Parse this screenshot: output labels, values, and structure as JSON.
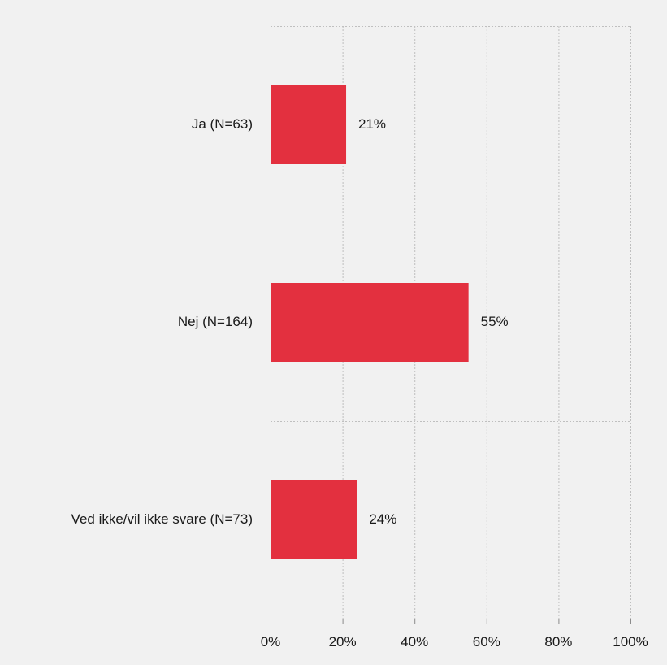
{
  "chart_data": {
    "type": "bar",
    "orientation": "horizontal",
    "categories": [
      "Ja (N=63)",
      "Nej (N=164)",
      "Ved ikke/vil ikke svare (N=73)"
    ],
    "values": [
      21,
      55,
      24
    ],
    "value_labels": [
      "21%",
      "55%",
      "24%"
    ],
    "xlim": [
      0,
      100
    ],
    "x_ticks": [
      0,
      20,
      40,
      60,
      80,
      100
    ],
    "x_tick_labels": [
      "0%",
      "20%",
      "40%",
      "60%",
      "80%",
      "100%"
    ],
    "grid": true,
    "legend": "none",
    "title": "",
    "xlabel": "",
    "ylabel": "",
    "bar_color": "#e3303f",
    "grid_color": "#bfbfbf",
    "axis_color": "#8c8c8c",
    "background_color": "#f1f1f1"
  }
}
